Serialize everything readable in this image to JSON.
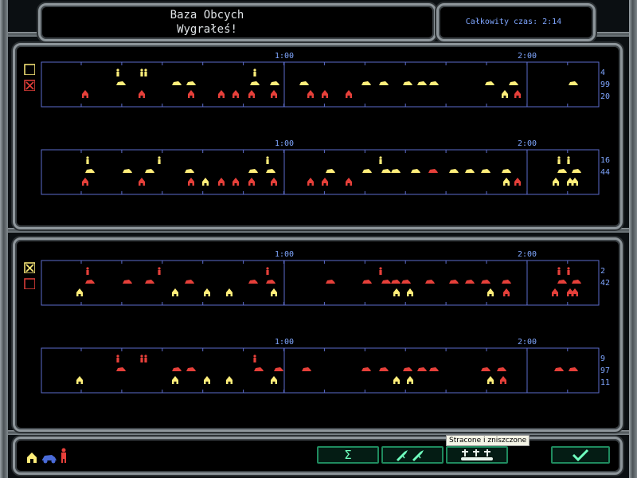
{
  "header": {
    "title": "Baza Obcych",
    "subtitle": "Wygrałeś!",
    "total_time_label": "Całkowity czas: 2:14"
  },
  "colors": {
    "axis": "#5d6dcc",
    "label": "#7fa6ff",
    "yellow": "#ffee7a",
    "red": "#e6403a",
    "button_border": "#1f8a5e",
    "button_icon": "#6fffbe"
  },
  "panels": [
    {
      "id": "top",
      "checkbox_selected": "bottom",
      "rows": [
        {
          "time_labels": [
            "1:00",
            "2:00"
          ],
          "counts": [
            "4",
            "99",
            "20"
          ]
        },
        {
          "time_labels": [
            "1:00",
            "2:00"
          ],
          "counts": [
            "16",
            "44",
            ""
          ]
        }
      ]
    },
    {
      "id": "bottom",
      "checkbox_selected": "top",
      "rows": [
        {
          "time_labels": [
            "1:00",
            "2:00"
          ],
          "counts": [
            "2",
            "42",
            ""
          ]
        },
        {
          "time_labels": [
            "1:00",
            "2:00"
          ],
          "counts": [
            "9",
            "97",
            "11"
          ]
        }
      ]
    }
  ],
  "footer": {
    "legend_icons": [
      "house-icon",
      "vehicle-icon",
      "soldier-icon"
    ],
    "buttons": [
      {
        "name": "sum-button",
        "icon": "sigma-icon",
        "label": "Σ"
      },
      {
        "name": "weapons-button",
        "icon": "rifles-icon"
      },
      {
        "name": "losses-button",
        "icon": "graves-icon"
      },
      {
        "name": "confirm-button",
        "icon": "checkmark-icon"
      }
    ],
    "tooltip": "Stracone i zniszczone"
  }
}
